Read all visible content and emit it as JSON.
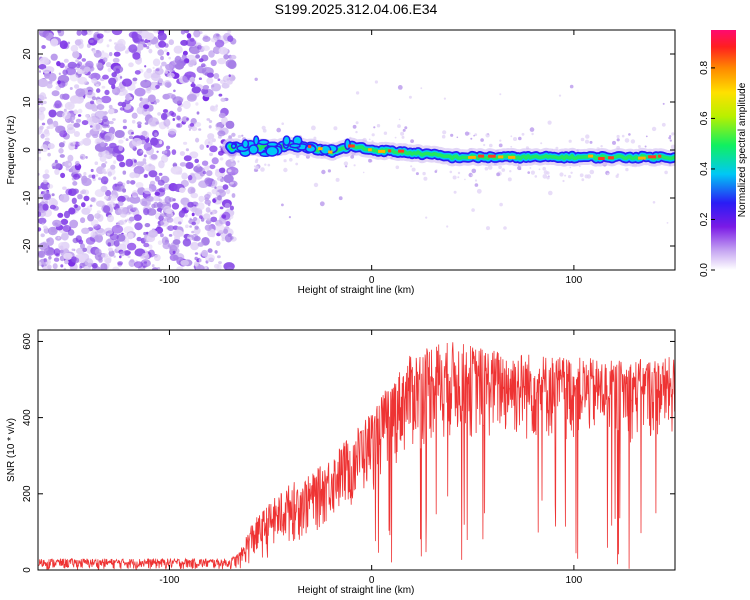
{
  "title": "S199.2025.312.04.06.E34",
  "chart_data": [
    {
      "type": "heatmap",
      "xlabel": "Height of straight line (km)",
      "ylabel": "Frequency (Hz)",
      "xlim": [
        -165,
        150
      ],
      "ylim": [
        -25,
        25
      ],
      "xticks": [
        -100,
        0,
        100
      ],
      "yticks": [
        -20,
        -10,
        0,
        10,
        20
      ],
      "noise_region_x": [
        -165,
        -70
      ],
      "signal_start_x": -70,
      "ridge": {
        "x": [
          -70,
          -60,
          -50,
          -40,
          -30,
          -20,
          -10,
          0,
          10,
          20,
          30,
          40,
          50,
          60,
          70,
          80,
          90,
          100,
          110,
          120,
          130,
          140,
          148
        ],
        "freq": [
          0.5,
          0.5,
          0.5,
          1.0,
          0.5,
          -0.5,
          0.8,
          0.0,
          -0.3,
          -0.6,
          -1.0,
          -1.5,
          -1.5,
          -1.5,
          -1.5,
          -1.5,
          -1.5,
          -1.5,
          -1.5,
          -1.5,
          -1.5,
          -1.5,
          -1.5
        ]
      },
      "colorbar": {
        "label": "Normalized spectral amplitude",
        "range": [
          0.0,
          0.95
        ],
        "ticks": [
          0.0,
          0.2,
          0.4,
          0.6,
          0.8
        ],
        "tick_labels": [
          "0.0",
          "0.2",
          "0.4",
          "0.6",
          "0.8"
        ]
      }
    },
    {
      "type": "line",
      "xlabel": "Height of straight line (km)",
      "ylabel": "SNR (10 * v/v)",
      "xlim": [
        -165,
        150
      ],
      "ylim": [
        0,
        630
      ],
      "xticks": [
        -100,
        0,
        100
      ],
      "yticks": [
        0,
        200,
        400,
        600
      ],
      "color": "#ee3333",
      "envelope": {
        "x": [
          -165,
          -70,
          -65,
          -60,
          -50,
          -40,
          -30,
          -20,
          -10,
          0,
          10,
          20,
          30,
          40,
          60,
          80,
          100,
          120,
          150
        ],
        "max": [
          30,
          30,
          50,
          120,
          180,
          230,
          250,
          300,
          360,
          420,
          500,
          570,
          600,
          600,
          580,
          570,
          560,
          550,
          560
        ],
        "min": [
          0,
          0,
          0,
          10,
          30,
          60,
          80,
          120,
          150,
          200,
          260,
          300,
          320,
          330,
          330,
          320,
          330,
          330,
          330
        ]
      }
    }
  ]
}
